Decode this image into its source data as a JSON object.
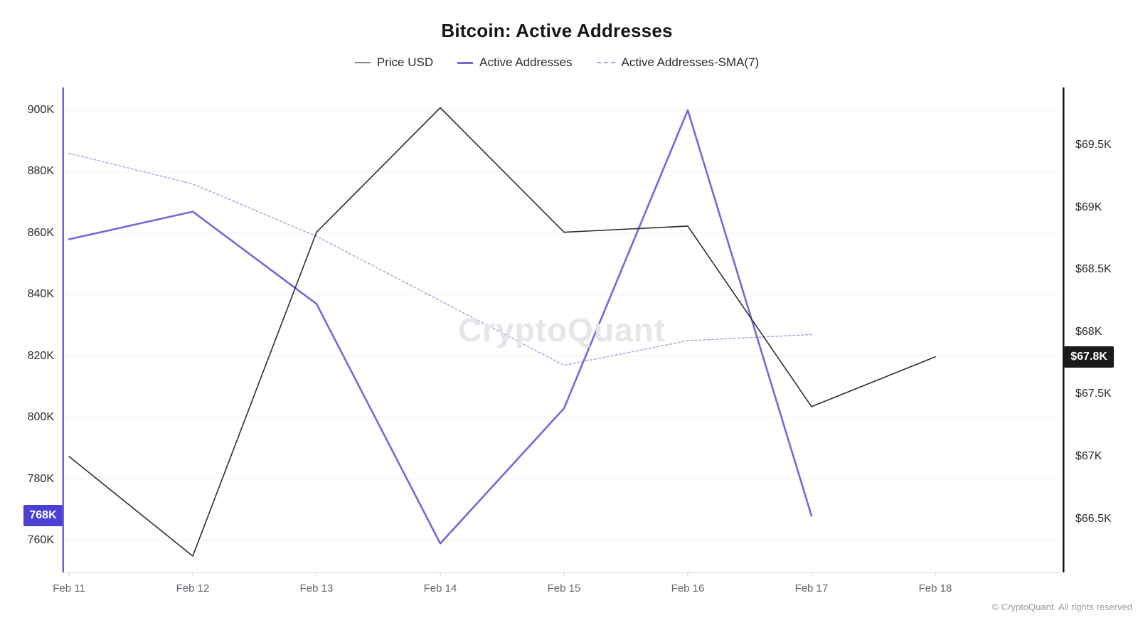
{
  "title": "Bitcoin: Active Addresses",
  "watermark": "CryptoQuant",
  "copyright": "© CryptoQuant. All rights reserved",
  "legend": [
    {
      "label": "Price USD",
      "color": "#848484",
      "style": "solid"
    },
    {
      "label": "Active Addresses",
      "color": "#7568d8",
      "style": "solid"
    },
    {
      "label": "Active Addresses-SMA(7)",
      "color": "#a8a0e8",
      "style": "dashed"
    }
  ],
  "badges": {
    "left": {
      "label": "768K",
      "value": 768,
      "color": "#4a40d4"
    },
    "right": {
      "label": "$67.8K",
      "value": 67.8,
      "color": "#1a1a1a"
    }
  },
  "colors": {
    "price_line": "#2e2e2e",
    "active_line": "#7568d8",
    "sma_line": "#a8a0e8",
    "left_axis_spine": "#6e63d5",
    "right_axis_spine": "#111111",
    "gridline": "#f1f1f4",
    "x_axis_line": "#d9d9dc"
  },
  "chart_data": {
    "type": "line",
    "title": "Bitcoin: Active Addresses",
    "x_tick_labels": [
      "Feb 11",
      "Feb 12",
      "Feb 13",
      "Feb 14",
      "Feb 15",
      "Feb 16",
      "Feb 17",
      "Feb 18"
    ],
    "y_left": {
      "label": "Active Addresses",
      "unit": "addresses",
      "tick_labels": [
        "900K",
        "880K",
        "860K",
        "840K",
        "820K",
        "800K",
        "780K",
        "760K"
      ],
      "tick_values": [
        900,
        880,
        860,
        840,
        820,
        800,
        780,
        760
      ],
      "range": [
        750,
        905
      ]
    },
    "y_right": {
      "label": "Price USD",
      "unit": "USD (thousands)",
      "tick_labels": [
        "$69.5K",
        "$69K",
        "$68.5K",
        "$68K",
        "$67.5K",
        "$67K",
        "$66.5K"
      ],
      "tick_values": [
        69.5,
        69.0,
        68.5,
        68.0,
        67.5,
        67.0,
        66.5
      ],
      "range": [
        66.1,
        69.9
      ]
    },
    "grid": "horizontal-only",
    "legend_position": "top-center",
    "series": [
      {
        "name": "Active Addresses-SMA(7)",
        "axis": "left",
        "dash": true,
        "width": 1.4,
        "color": "#a8a0e8",
        "x": [
          "Feb 11",
          "Feb 12",
          "Feb 13",
          "Feb 14",
          "Feb 15",
          "Feb 16",
          "Feb 17"
        ],
        "values": [
          886,
          876,
          859,
          838,
          817,
          825,
          827
        ]
      },
      {
        "name": "Active Addresses",
        "axis": "left",
        "dash": false,
        "width": 2.6,
        "color": "#7568d8",
        "x": [
          "Feb 11",
          "Feb 12",
          "Feb 13",
          "Feb 14",
          "Feb 15",
          "Feb 16",
          "Feb 17"
        ],
        "values": [
          858,
          867,
          837,
          759,
          803,
          900,
          768
        ]
      },
      {
        "name": "Price USD",
        "axis": "right",
        "dash": false,
        "width": 1.6,
        "color": "#2e2e2e",
        "x": [
          "Feb 11",
          "Feb 12",
          "Feb 13",
          "Feb 14",
          "Feb 15",
          "Feb 16",
          "Feb 17",
          "Feb 18"
        ],
        "values": [
          67.0,
          66.2,
          68.8,
          69.8,
          68.8,
          68.85,
          67.4,
          67.8
        ]
      }
    ]
  }
}
